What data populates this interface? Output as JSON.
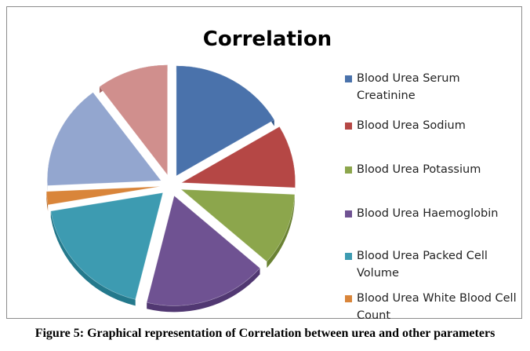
{
  "chart_data": {
    "type": "pie",
    "style": "3d-exploded",
    "title": "Correlation",
    "categories": [
      "Blood Urea Serum Creatinine",
      "Blood Urea Sodium",
      "Blood Urea Potassium",
      "Blood Urea Haemoglobin",
      "Blood Urea Packed Cell Volume",
      "Blood Urea White Blood Cell Count",
      "(unlabeled)",
      "(unlabeled)"
    ],
    "legend_labels": [
      "Blood Urea Serum Creatinine",
      "Blood Urea Sodium",
      "Blood Urea Potassium",
      "Blood Urea Haemoglobin",
      "Blood Urea Packed Cell Volume",
      "Blood Urea White Blood Cell Count"
    ],
    "values": [
      17,
      9.5,
      11,
      18,
      19,
      2,
      16,
      10.5
    ],
    "colors": [
      "#4a72ab",
      "#b54745",
      "#8ca64c",
      "#6f5292",
      "#3d9bb1",
      "#d9853a",
      "#93a6cf",
      "#d08f8d"
    ],
    "side_colors": [
      "#2f5587",
      "#8c2f2d",
      "#6a8233",
      "#513872",
      "#24798c",
      "#ad6120",
      "#6f82a8",
      "#a76866"
    ],
    "legend_position": "right"
  },
  "caption": "Figure 5: Graphical representation of Correlation between urea and other parameters"
}
